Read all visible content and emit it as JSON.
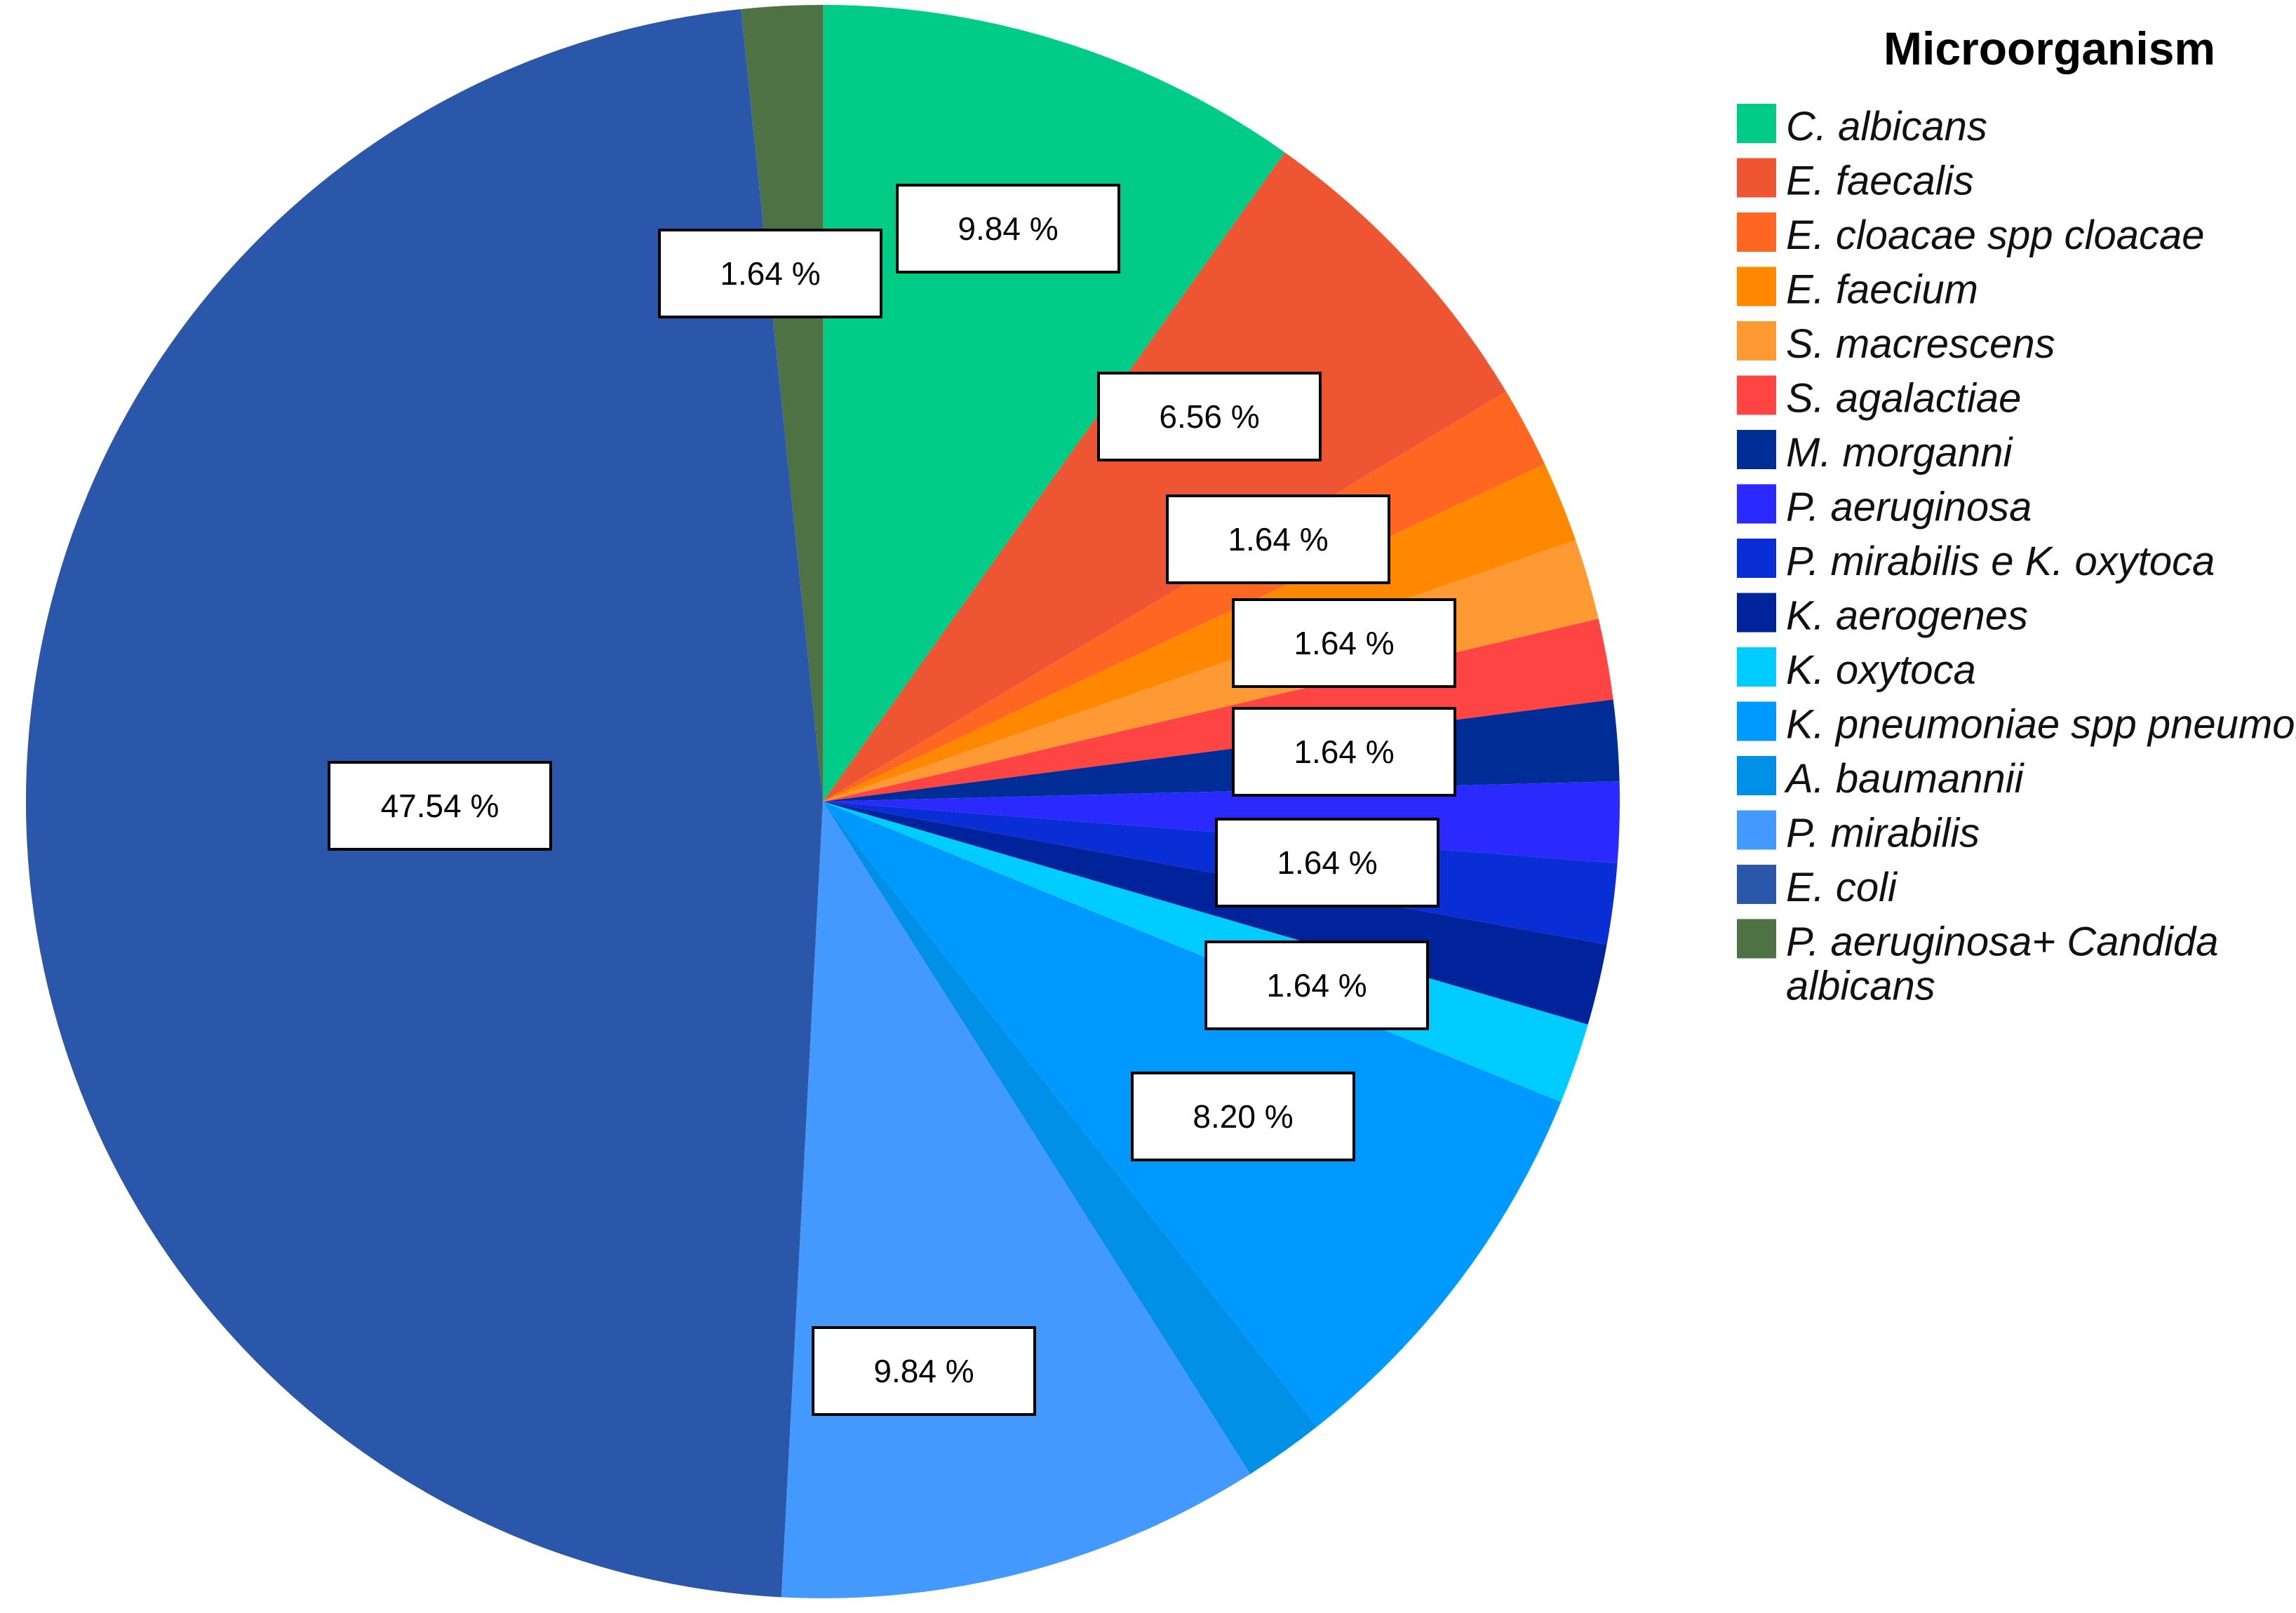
{
  "chart_data": {
    "type": "pie",
    "legend_title": "Microorganism",
    "legend_position": "right",
    "slices": [
      {
        "name": "C. albicans",
        "value": 9.84,
        "color": "#00cc88",
        "label": "9.84 %"
      },
      {
        "name": "E. faecalis",
        "value": 6.56,
        "color": "#ee5533",
        "label": "6.56 %"
      },
      {
        "name": "E. cloacae spp cloacae",
        "value": 1.64,
        "color": "#ff6622",
        "label": "1.64 %"
      },
      {
        "name": "E. faecium",
        "value": 1.64,
        "color": "#ff8800",
        "label": ""
      },
      {
        "name": "S. macrescens",
        "value": 1.64,
        "color": "#ff9933",
        "label": "1.64 %"
      },
      {
        "name": "S. agalactiae",
        "value": 1.64,
        "color": "#ff4444",
        "label": ""
      },
      {
        "name": "M. morganni",
        "value": 1.64,
        "color": "#002d96",
        "label": "1.64 %"
      },
      {
        "name": "P. aeruginosa",
        "value": 1.64,
        "color": "#2a2aff",
        "label": ""
      },
      {
        "name": "P. mirabilis e K. oxytoca",
        "value": 1.64,
        "color": "#0a2ed6",
        "label": "1.64 %"
      },
      {
        "name": "K. aerogenes",
        "value": 1.64,
        "color": "#00229a",
        "label": ""
      },
      {
        "name": "K. oxytoca",
        "value": 1.64,
        "color": "#00ccff",
        "label": "1.64 %"
      },
      {
        "name": "K. pneumoniae spp pneumoniae",
        "value": 8.2,
        "color": "#0099ff",
        "label": "8.20 %"
      },
      {
        "name": "A. baumannii",
        "value": 1.64,
        "color": "#0090e8",
        "label": ""
      },
      {
        "name": "P. mirabilis",
        "value": 9.84,
        "color": "#4499ff",
        "label": "9.84 %"
      },
      {
        "name": "E. coli",
        "value": 47.54,
        "color": "#2b57ab",
        "label": "47.54 %"
      },
      {
        "name": "P. aeruginosa+ Candida albicans",
        "value": 1.64,
        "color": "#4e7243",
        "label": "1.64 %"
      }
    ]
  }
}
